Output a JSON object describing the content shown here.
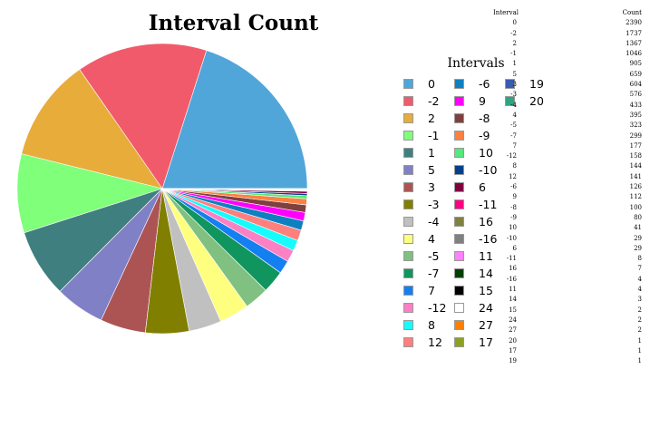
{
  "chart_data": {
    "type": "pie",
    "title": "Interval Count",
    "legend_title": "Intervals",
    "legend_placement": "right",
    "slices": [
      {
        "label": "0",
        "value": 2390,
        "color": "#51a6d9"
      },
      {
        "label": "-2",
        "value": 1737,
        "color": "#f15a6b"
      },
      {
        "label": "2",
        "value": 1367,
        "color": "#e8ac3b"
      },
      {
        "label": "-1",
        "value": 1046,
        "color": "#7fff7a"
      },
      {
        "label": "1",
        "value": 905,
        "color": "#407f7f"
      },
      {
        "label": "5",
        "value": 659,
        "color": "#8080c6"
      },
      {
        "label": "3",
        "value": 604,
        "color": "#ac5454"
      },
      {
        "label": "-3",
        "value": 576,
        "color": "#807f00"
      },
      {
        "label": "-4",
        "value": 433,
        "color": "#c0c0c0"
      },
      {
        "label": "4",
        "value": 395,
        "color": "#ffff7f"
      },
      {
        "label": "-5",
        "value": 323,
        "color": "#80c080"
      },
      {
        "label": "-7",
        "value": 299,
        "color": "#10955f"
      },
      {
        "label": "7",
        "value": 177,
        "color": "#147ff0"
      },
      {
        "label": "-12",
        "value": 158,
        "color": "#fb80c4"
      },
      {
        "label": "8",
        "value": 144,
        "color": "#15fcfc"
      },
      {
        "label": "12",
        "value": 141,
        "color": "#fd807f"
      },
      {
        "label": "-6",
        "value": 126,
        "color": "#0e80c0"
      },
      {
        "label": "9",
        "value": 112,
        "color": "#ff00ff"
      },
      {
        "label": "-8",
        "value": 100,
        "color": "#804040"
      },
      {
        "label": "-9",
        "value": 80,
        "color": "#fe8040"
      },
      {
        "label": "10",
        "value": 41,
        "color": "#55e87a"
      },
      {
        "label": "-10",
        "value": 29,
        "color": "#04408a"
      },
      {
        "label": "6",
        "value": 29,
        "color": "#800040"
      },
      {
        "label": "-11",
        "value": 8,
        "color": "#fe0080"
      },
      {
        "label": "16",
        "value": 7,
        "color": "#808040"
      },
      {
        "label": "-16",
        "value": 4,
        "color": "#808080"
      },
      {
        "label": "11",
        "value": 4,
        "color": "#fe80fe"
      },
      {
        "label": "14",
        "value": 3,
        "color": "#004000"
      },
      {
        "label": "15",
        "value": 2,
        "color": "#000000"
      },
      {
        "label": "24",
        "value": 2,
        "color": "#ffffff"
      },
      {
        "label": "27",
        "value": 2,
        "color": "#ff8000"
      },
      {
        "label": "17",
        "value": 1,
        "color": "#8ca024"
      },
      {
        "label": "19",
        "value": 1,
        "color": "#3a5bb0"
      },
      {
        "label": "20",
        "value": 1,
        "color": "#2ea483"
      }
    ]
  },
  "table": {
    "headers": [
      "Interval",
      "Count"
    ],
    "rows": [
      [
        "0",
        "2390"
      ],
      [
        "-2",
        "1737"
      ],
      [
        "2",
        "1367"
      ],
      [
        "-1",
        "1046"
      ],
      [
        "1",
        "905"
      ],
      [
        "5",
        "659"
      ],
      [
        "3",
        "604"
      ],
      [
        "-3",
        "576"
      ],
      [
        "-4",
        "433"
      ],
      [
        "4",
        "395"
      ],
      [
        "-5",
        "323"
      ],
      [
        "-7",
        "299"
      ],
      [
        "7",
        "177"
      ],
      [
        "-12",
        "158"
      ],
      [
        "8",
        "144"
      ],
      [
        "12",
        "141"
      ],
      [
        "-6",
        "126"
      ],
      [
        "9",
        "112"
      ],
      [
        "-8",
        "100"
      ],
      [
        "-9",
        "80"
      ],
      [
        "10",
        "41"
      ],
      [
        "-10",
        "29"
      ],
      [
        "6",
        "29"
      ],
      [
        "-11",
        "8"
      ],
      [
        "16",
        "7"
      ],
      [
        "-16",
        "4"
      ],
      [
        "11",
        "4"
      ],
      [
        "14",
        "3"
      ],
      [
        "15",
        "2"
      ],
      [
        "24",
        "2"
      ],
      [
        "27",
        "2"
      ],
      [
        "20",
        "1"
      ],
      [
        "17",
        "1"
      ],
      [
        "19",
        "1"
      ]
    ]
  }
}
